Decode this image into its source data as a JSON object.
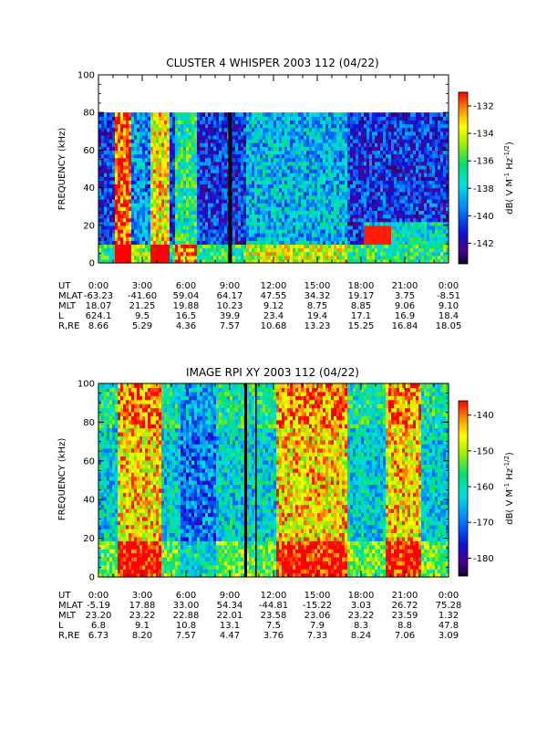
{
  "chart_data": [
    {
      "type": "heatmap",
      "title": "CLUSTER 4 WHISPER 2003 112 (04/22)",
      "ylabel": "FREQUENCY (kHz)",
      "ylim": [
        0,
        100
      ],
      "yticks": [
        "0",
        "20",
        "40",
        "60",
        "80",
        "100"
      ],
      "data_frequency_max_khz": 80,
      "xlim_hours": [
        0,
        24
      ],
      "colorbar": {
        "label": "dB( V M⁻¹ Hz⁻¹ᐟ²)",
        "label_parts": [
          "dB( V M",
          "-1",
          " Hz",
          "-1/2",
          ")"
        ],
        "range": [
          -143.5,
          -131
        ],
        "ticks": [
          "-132",
          "-134",
          "-136",
          "-138",
          "-140",
          "-142"
        ],
        "tick_values": [
          -132,
          -134,
          -136,
          -138,
          -140,
          -142
        ]
      },
      "ephemeris": {
        "labels": [
          "UT",
          "MLAT",
          "MLT",
          "L",
          "R,RE"
        ],
        "ut": [
          "0:00",
          "3:00",
          "6:00",
          "9:00",
          "12:00",
          "15:00",
          "18:00",
          "21:00",
          "0:00"
        ],
        "mlat": [
          "-63.23",
          "-41.60",
          "59.04",
          "64.17",
          "47.55",
          "34.32",
          "19.17",
          "3.75",
          "-8.51"
        ],
        "mlt": [
          "18.07",
          "21.25",
          "19.88",
          "10.23",
          "9.12",
          "8.75",
          "8.85",
          "9.06",
          "9.10"
        ],
        "l": [
          "624.1",
          "9.5",
          "16.5",
          "39.9",
          "23.4",
          "19.4",
          "17.1",
          "16.9",
          "18.4"
        ],
        "r_re": [
          "8.66",
          "5.29",
          "4.36",
          "7.57",
          "10.68",
          "13.23",
          "15.25",
          "16.84",
          "18.05"
        ]
      }
    },
    {
      "type": "heatmap",
      "title": "IMAGE RPI XY 2003 112 (04/22)",
      "ylabel": "FREQUENCY (kHz)",
      "ylim": [
        0,
        100
      ],
      "yticks": [
        "0",
        "20",
        "40",
        "60",
        "80",
        "100"
      ],
      "xlim_hours": [
        0,
        24
      ],
      "colorbar": {
        "label": "dB( V M⁻¹ Hz⁻¹ᐟ²)",
        "label_parts": [
          "dB( V M",
          "-1",
          " Hz",
          "-1/2",
          ")"
        ],
        "range": [
          -185,
          -136
        ],
        "ticks": [
          "-140",
          "-150",
          "-160",
          "-170",
          "-180"
        ],
        "tick_values": [
          -140,
          -150,
          -160,
          -170,
          -180
        ]
      },
      "ephemeris": {
        "labels": [
          "UT",
          "MLAT",
          "MLT",
          "L",
          "R,RE"
        ],
        "ut": [
          "0:00",
          "3:00",
          "6:00",
          "9:00",
          "12:00",
          "15:00",
          "18:00",
          "21:00",
          "0:00"
        ],
        "mlat": [
          "-5.19",
          "17.88",
          "33.00",
          "54.34",
          "-44.81",
          "-15.22",
          "3.03",
          "26.72",
          "75.28"
        ],
        "mlt": [
          "23.20",
          "23.22",
          "22.88",
          "22.01",
          "23.58",
          "23.06",
          "23.22",
          "23.59",
          "1.32"
        ],
        "l": [
          "6.8",
          "9.1",
          "10.8",
          "13.1",
          "7.5",
          "7.9",
          "8.3",
          "8.8",
          "47.8"
        ],
        "r_re": [
          "6.73",
          "8.20",
          "7.57",
          "4.47",
          "3.76",
          "7.33",
          "8.24",
          "7.06",
          "3.09"
        ]
      }
    }
  ]
}
